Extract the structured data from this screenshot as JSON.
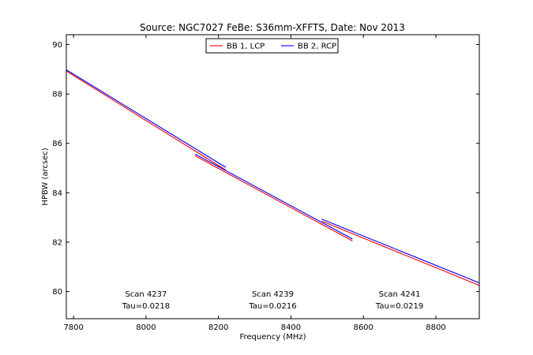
{
  "chart_data": {
    "type": "line",
    "title": "Source: NGC7027 FeBe: S36mm-XFFTS, Date: Nov 2013",
    "xlabel": "Frequency (MHz)",
    "ylabel": "HPBW (arcsec)",
    "xlim": [
      7780,
      8920
    ],
    "ylim": [
      78.9,
      90.4
    ],
    "xticks": [
      7800,
      8000,
      8200,
      8400,
      8600,
      8800
    ],
    "yticks": [
      80,
      82,
      84,
      86,
      88,
      90
    ],
    "legend_position": "upper center",
    "grid": false,
    "series": [
      {
        "name": "BB 1, LCP",
        "color": "#ff0000",
        "segments": [
          [
            [
              7780,
              88.93
            ],
            [
              8220,
              84.92
            ]
          ],
          [
            [
              8135,
              85.5
            ],
            [
              8570,
              82.05
            ]
          ],
          [
            [
              8485,
              82.85
            ],
            [
              8920,
              80.25
            ]
          ]
        ]
      },
      {
        "name": "BB 2, RCP",
        "color": "#0000ff",
        "segments": [
          [
            [
              7780,
              88.98
            ],
            [
              8220,
              85.03
            ]
          ],
          [
            [
              8135,
              85.57
            ],
            [
              8570,
              82.13
            ]
          ],
          [
            [
              8485,
              82.93
            ],
            [
              8920,
              80.35
            ]
          ]
        ]
      }
    ],
    "annotations": [
      {
        "lines": [
          "Scan 4237",
          "Tau=0.0218"
        ],
        "x": 8000
      },
      {
        "lines": [
          "Scan 4239",
          "Tau=0.0216"
        ],
        "x": 8350
      },
      {
        "lines": [
          "Scan 4241",
          "Tau=0.0219"
        ],
        "x": 8700
      }
    ]
  }
}
